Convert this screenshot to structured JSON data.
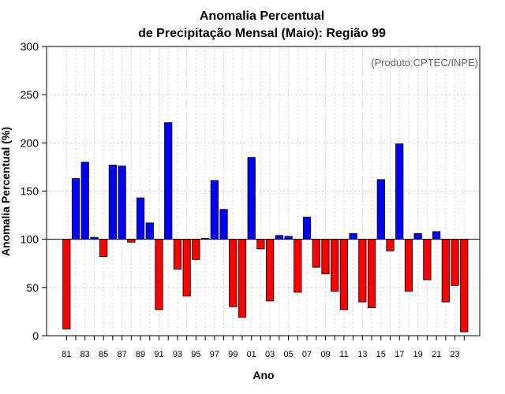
{
  "chart_data": {
    "type": "bar",
    "title_line1": "Anomalia Percentual",
    "title_line2": "de Precipitação Mensal (Maio): Região 99",
    "xlabel": "Ano",
    "ylabel": "Anomalia Percentual (%)",
    "credit": "(Produto:CPTEC/INPE)",
    "ylim": [
      0,
      300
    ],
    "yticks": [
      0,
      50,
      100,
      150,
      200,
      250,
      300
    ],
    "baseline": 100,
    "grid": true,
    "colors": {
      "above": "#0000ff",
      "below": "#ff0000",
      "edge": "#000000",
      "grid": "#d3d3d3"
    },
    "categories": [
      "81",
      "82",
      "83",
      "84",
      "85",
      "86",
      "87",
      "88",
      "89",
      "90",
      "91",
      "92",
      "93",
      "94",
      "95",
      "96",
      "97",
      "98",
      "99",
      "00",
      "01",
      "02",
      "03",
      "04",
      "05",
      "06",
      "07",
      "08",
      "09",
      "10",
      "11",
      "12",
      "13",
      "14",
      "15",
      "16",
      "17",
      "18",
      "19",
      "20",
      "21",
      "22",
      "23",
      "24"
    ],
    "values": [
      7,
      163,
      180,
      102,
      82,
      177,
      176,
      97,
      143,
      117,
      27,
      221,
      69,
      41,
      79,
      101,
      161,
      131,
      30,
      19,
      185,
      90,
      36,
      104,
      103,
      45,
      123,
      71,
      64,
      46,
      27,
      106,
      35,
      29,
      162,
      88,
      199,
      46,
      106,
      58,
      108,
      35,
      52,
      4
    ],
    "xtick_labels": [
      "81",
      "83",
      "85",
      "87",
      "89",
      "91",
      "93",
      "95",
      "97",
      "99",
      "01",
      "03",
      "05",
      "07",
      "09",
      "11",
      "13",
      "15",
      "17",
      "19",
      "21",
      "23"
    ]
  }
}
